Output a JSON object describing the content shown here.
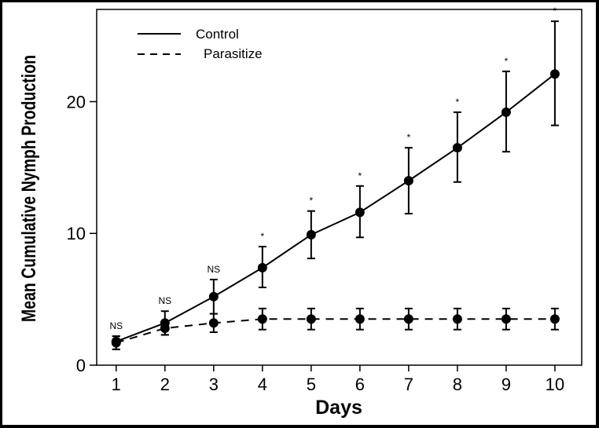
{
  "chart_data": {
    "type": "line",
    "title": "",
    "xlabel": "Days",
    "ylabel": "Mean Cumulative Nymph Production",
    "x": [
      1,
      2,
      3,
      4,
      5,
      6,
      7,
      8,
      9,
      10
    ],
    "xticks": [
      "1",
      "2",
      "3",
      "4",
      "5",
      "6",
      "7",
      "8",
      "9",
      "10"
    ],
    "yticks": [
      "0",
      "10",
      "20"
    ],
    "xlim": [
      0.6,
      10.55
    ],
    "ylim": [
      0,
      27
    ],
    "legend_position": "top-left",
    "series": [
      {
        "name": "Control",
        "line_style": "solid",
        "values": [
          1.8,
          3.2,
          5.2,
          7.4,
          9.9,
          11.6,
          14.0,
          16.5,
          19.2,
          22.1
        ],
        "err_low": [
          1.2,
          2.3,
          3.9,
          5.9,
          8.1,
          9.7,
          11.5,
          13.9,
          16.2,
          18.2
        ],
        "err_high": [
          2.2,
          4.1,
          6.5,
          9.0,
          11.7,
          13.6,
          16.5,
          19.2,
          22.3,
          26.1
        ]
      },
      {
        "name": "Parasitize",
        "line_style": "dashed",
        "values": [
          1.7,
          2.8,
          3.2,
          3.5,
          3.5,
          3.5,
          3.5,
          3.5,
          3.5,
          3.5
        ],
        "err_low": [
          1.2,
          2.3,
          2.5,
          2.7,
          2.7,
          2.7,
          2.7,
          2.7,
          2.7,
          2.7
        ],
        "err_high": [
          2.2,
          3.3,
          3.9,
          4.3,
          4.3,
          4.3,
          4.3,
          4.3,
          4.3,
          4.3
        ]
      }
    ],
    "annotations": [
      "NS",
      "NS",
      "NS",
      "*",
      "*",
      "*",
      "*",
      "*",
      "*",
      "*"
    ],
    "color": "#000000"
  }
}
